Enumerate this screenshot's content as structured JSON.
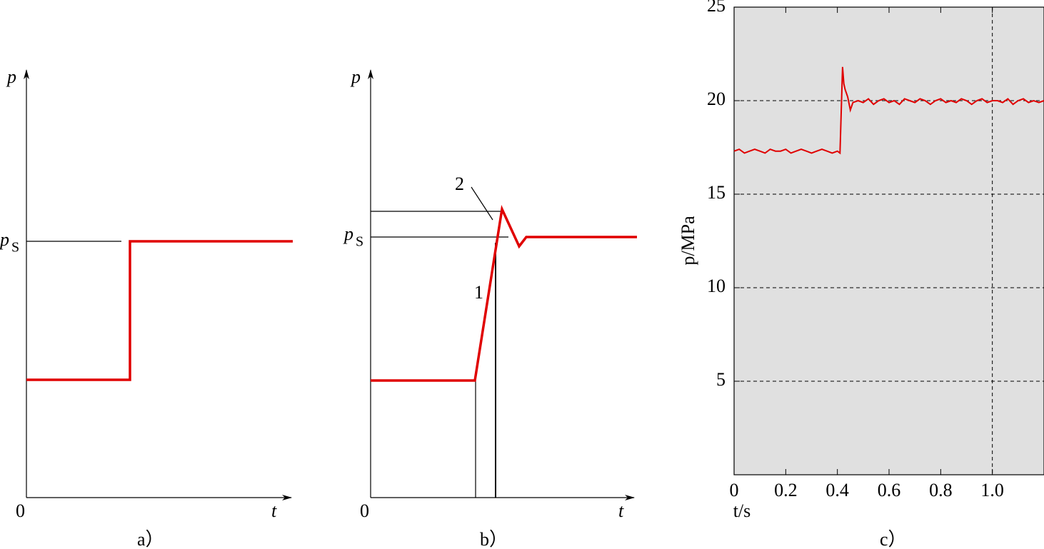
{
  "chart_data": [
    {
      "type": "diagram",
      "caption": "a）",
      "y_label": "p",
      "x_label": "t",
      "origin": "0",
      "level_label": "p",
      "level_sub": "S"
    },
    {
      "type": "diagram",
      "caption": "b）",
      "y_label": "p",
      "x_label": "t",
      "origin": "0",
      "level_label": "p",
      "level_sub": "S",
      "callouts": [
        "1",
        "2"
      ]
    },
    {
      "type": "line",
      "caption": "c）",
      "x_label": "t/s",
      "y_label": "p/MPa",
      "color": "#e00000",
      "background": "#e0e0e0",
      "xlim": [
        0,
        1.2
      ],
      "ylim": [
        0,
        25
      ],
      "xticks": [
        0,
        0.2,
        0.4,
        0.6,
        0.8,
        {
          "value": 1,
          "label": "1.0"
        }
      ],
      "yticks": [
        5,
        10,
        15,
        20,
        25
      ],
      "ygrid": true,
      "xgrid_lines": [
        1
      ],
      "x": [
        0,
        0.02,
        0.04,
        0.06,
        0.08,
        0.1,
        0.12,
        0.14,
        0.16,
        0.18,
        0.2,
        0.22,
        0.24,
        0.26,
        0.28,
        0.3,
        0.32,
        0.34,
        0.36,
        0.38,
        0.4,
        0.41,
        0.415,
        0.42,
        0.425,
        0.43,
        0.44,
        0.45,
        0.46,
        0.48,
        0.5,
        0.52,
        0.54,
        0.56,
        0.58,
        0.6,
        0.62,
        0.64,
        0.66,
        0.68,
        0.7,
        0.72,
        0.74,
        0.76,
        0.78,
        0.8,
        0.82,
        0.84,
        0.86,
        0.88,
        0.9,
        0.92,
        0.94,
        0.96,
        0.98,
        1,
        1.02,
        1.04,
        1.06,
        1.08,
        1.1,
        1.12,
        1.14,
        1.16,
        1.18,
        1.2
      ],
      "values": [
        17.3,
        17.4,
        17.2,
        17.3,
        17.4,
        17.3,
        17.2,
        17.4,
        17.3,
        17.3,
        17.4,
        17.2,
        17.3,
        17.4,
        17.3,
        17.2,
        17.3,
        17.4,
        17.3,
        17.2,
        17.3,
        17.2,
        19.5,
        21.8,
        20.9,
        20.6,
        20.2,
        19.5,
        19.9,
        20.0,
        19.9,
        20.1,
        19.8,
        20.0,
        20.1,
        19.9,
        20.0,
        19.8,
        20.1,
        20.0,
        19.9,
        20.1,
        20.0,
        19.8,
        20.0,
        20.1,
        19.9,
        20.0,
        19.9,
        20.1,
        20.0,
        19.8,
        20.0,
        20.1,
        19.9,
        20.0,
        20.0,
        19.9,
        20.1,
        19.8,
        20.0,
        20.1,
        19.9,
        20.0,
        19.9,
        20.0
      ]
    }
  ]
}
